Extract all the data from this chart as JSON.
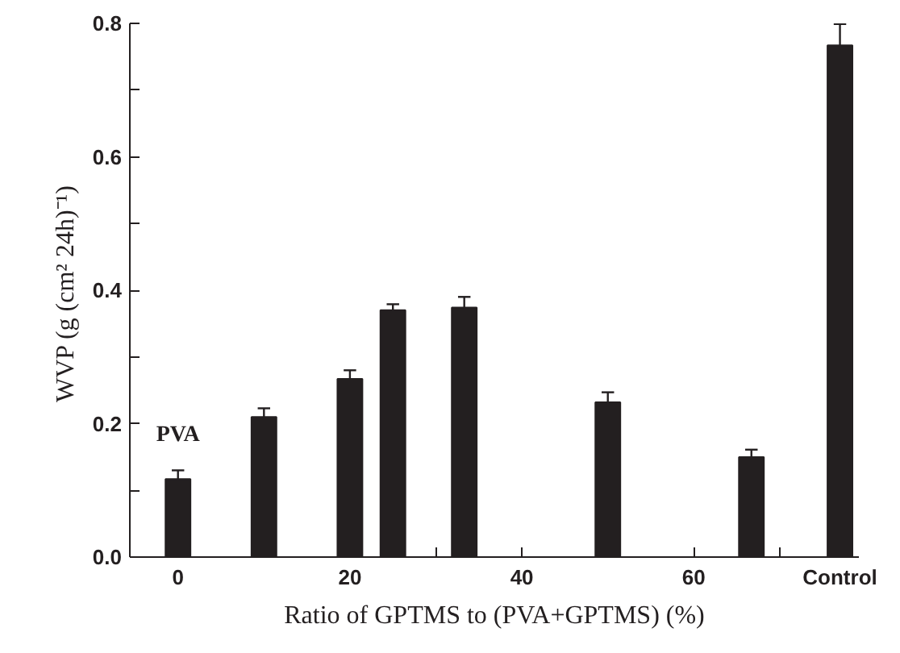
{
  "chart_data": {
    "type": "bar",
    "x": [
      0,
      10,
      20,
      25,
      33.3,
      50,
      66.7,
      77
    ],
    "values": [
      0.117,
      0.21,
      0.267,
      0.37,
      0.374,
      0.232,
      0.15,
      0.767
    ],
    "errors": [
      0.013,
      0.013,
      0.013,
      0.009,
      0.016,
      0.015,
      0.011,
      0.032
    ],
    "color": "#231f20",
    "xlabel": "Ratio of GPTMS to (PVA+GPTMS) (%)",
    "ylabel": "WVP  (g (cm² 24h)⁻¹)",
    "xlim": [
      -5.6,
      79.2
    ],
    "ylim": [
      0,
      0.8
    ],
    "xticks": [
      0,
      {
        "value": 10,
        "label": null
      },
      20,
      {
        "value": 30,
        "label": null
      },
      40,
      {
        "value": 50,
        "label": null
      },
      60,
      {
        "value": 70,
        "label": null
      },
      {
        "value": 77,
        "label": "Control"
      }
    ],
    "yticks": [
      {
        "value": 0,
        "label": "0.0"
      },
      {
        "value": 0.1,
        "label": null
      },
      {
        "value": 0.2,
        "label": "0.2"
      },
      {
        "value": 0.3,
        "label": null
      },
      {
        "value": 0.4,
        "label": "0.4"
      },
      {
        "value": 0.5,
        "label": null
      },
      {
        "value": 0.6,
        "label": "0.6"
      },
      {
        "value": 0.7,
        "label": null
      },
      {
        "value": 0.8,
        "label": "0.8"
      }
    ],
    "annotations": [
      "PVA"
    ],
    "grid": false
  }
}
